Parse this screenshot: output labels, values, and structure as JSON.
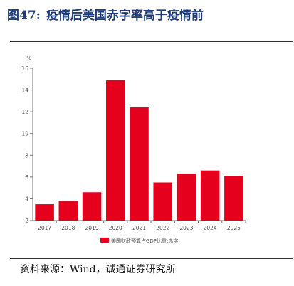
{
  "figure": {
    "number": "图47:",
    "title": "疫情后美国赤字率高于疫情前"
  },
  "source": "资料来源：Wind，诚通证券研究所",
  "chart_data": {
    "type": "bar",
    "title": "",
    "xlabel": "",
    "ylabel": "%",
    "categories": [
      "2017",
      "2018",
      "2019",
      "2020",
      "2021",
      "2022",
      "2023",
      "2024",
      "2025"
    ],
    "series": [
      {
        "name": "美国财政预算占GDP比重:赤字",
        "values": [
          3.5,
          3.8,
          4.6,
          14.9,
          12.4,
          5.5,
          6.3,
          6.6,
          6.1
        ]
      }
    ],
    "ylim": [
      2,
      16
    ],
    "yticks": [
      2,
      4,
      6,
      8,
      10,
      12,
      14,
      16
    ],
    "grid": false,
    "legend": "bottom",
    "colors": {
      "bar": "#e5001e",
      "axis": "#777777"
    }
  }
}
